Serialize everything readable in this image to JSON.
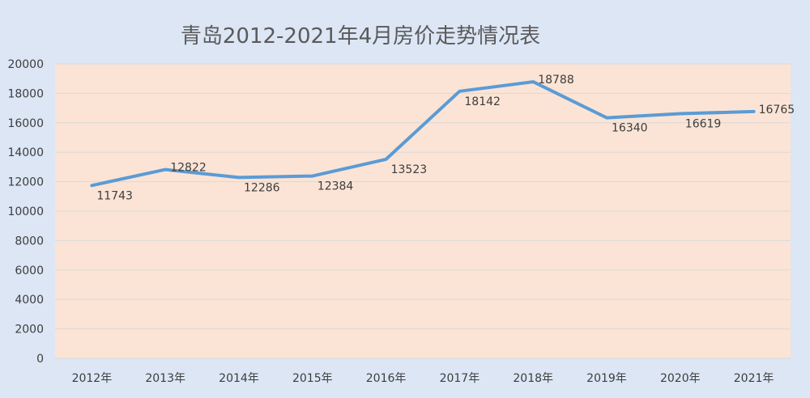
{
  "chart_data": {
    "type": "line",
    "title": "青岛2012-2021年4月房价走势情况表",
    "xlabel": "",
    "ylabel": "",
    "categories": [
      "2012年",
      "2013年",
      "2014年",
      "2015年",
      "2016年",
      "2017年",
      "2018年",
      "2019年",
      "2020年",
      "2021年"
    ],
    "series": [
      {
        "values": [
          11743,
          12822,
          12286,
          12384,
          13523,
          18142,
          18788,
          16340,
          16619,
          16765
        ],
        "color": "#5b9bd5"
      }
    ],
    "ylim": [
      0,
      20000
    ],
    "yticks": [
      0,
      2000,
      4000,
      6000,
      8000,
      10000,
      12000,
      14000,
      16000,
      18000,
      20000
    ],
    "grid": true,
    "legend": "none",
    "data_labels": true
  },
  "colors": {
    "page_background": "#dce6f5",
    "plot_background": "#fbe4d5",
    "gridline": "#d9d9d9",
    "line": "#5b9bd5"
  }
}
